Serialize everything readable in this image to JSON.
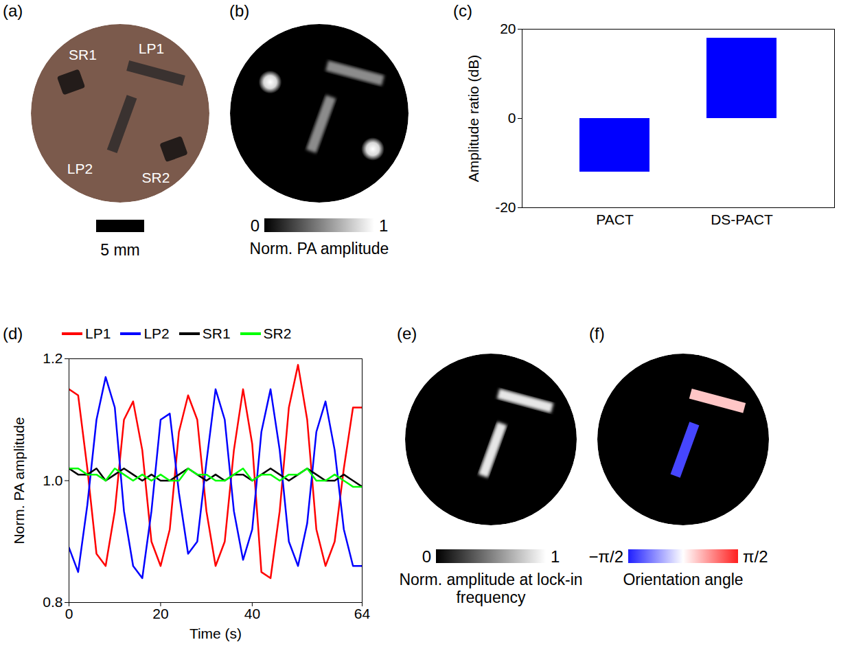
{
  "chart_data": [
    {
      "panel": "(c)",
      "type": "bar",
      "categories": [
        "PACT",
        "DS-PACT"
      ],
      "values": [
        -12,
        18
      ],
      "color": "#0000ff",
      "ylabel": "Amplitude ratio (dB)",
      "ylim": [
        -20,
        20
      ],
      "yticks": [
        -20,
        0,
        20
      ]
    },
    {
      "panel": "(d)",
      "type": "line",
      "xlabel": "Time (s)",
      "ylabel": "Norm. PA amplitude",
      "xlim": [
        0,
        64
      ],
      "xticks": [
        0,
        20,
        40,
        64
      ],
      "ylim": [
        0.8,
        1.2
      ],
      "yticks": [
        0.8,
        {
          "value": 1.0,
          "label": "1.0"
        },
        1.2
      ],
      "legend": "top",
      "x": [
        0,
        2,
        4,
        6,
        8,
        10,
        12,
        14,
        16,
        18,
        20,
        22,
        24,
        26,
        28,
        30,
        32,
        34,
        36,
        38,
        40,
        42,
        44,
        46,
        48,
        50,
        52,
        54,
        56,
        58,
        60,
        62,
        64
      ],
      "series": [
        {
          "name": "LP1",
          "color": "#ff0000",
          "values": [
            1.15,
            1.14,
            1.02,
            0.88,
            0.86,
            0.95,
            1.1,
            1.13,
            1.05,
            0.9,
            0.86,
            0.92,
            1.08,
            1.14,
            1.1,
            0.95,
            0.86,
            0.9,
            1.05,
            1.15,
            1.06,
            0.85,
            0.84,
            0.95,
            1.12,
            1.19,
            1.1,
            0.92,
            0.86,
            0.9,
            1.02,
            1.12,
            1.12
          ]
        },
        {
          "name": "LP2",
          "color": "#0000ff",
          "values": [
            0.89,
            0.85,
            0.96,
            1.1,
            1.17,
            1.12,
            0.95,
            0.86,
            0.84,
            0.95,
            1.1,
            1.11,
            0.98,
            0.88,
            0.9,
            1.03,
            1.15,
            1.1,
            0.95,
            0.87,
            0.92,
            1.08,
            1.15,
            1.05,
            0.9,
            0.86,
            0.93,
            1.08,
            1.13,
            1.05,
            0.92,
            0.86,
            0.86
          ]
        },
        {
          "name": "SR1",
          "color": "#000000",
          "values": [
            1.02,
            1.01,
            1.01,
            1.02,
            1.0,
            1.01,
            1.02,
            1.01,
            1.0,
            1.01,
            1.0,
            1.0,
            1.01,
            1.02,
            1.01,
            1.0,
            1.01,
            1.0,
            1.01,
            1.01,
            1.0,
            1.01,
            1.02,
            1.01,
            1.0,
            1.01,
            1.02,
            1.01,
            1.0,
            1.0,
            1.01,
            1.0,
            0.99
          ]
        },
        {
          "name": "SR2",
          "color": "#00ff00",
          "values": [
            1.02,
            1.02,
            1.01,
            1.01,
            1.0,
            1.02,
            1.01,
            1.0,
            1.01,
            1.0,
            1.01,
            1.0,
            1.0,
            1.02,
            1.01,
            1.01,
            1.0,
            1.0,
            1.01,
            1.02,
            1.0,
            1.01,
            1.01,
            1.0,
            1.01,
            1.01,
            1.02,
            1.0,
            1.0,
            1.01,
            1.0,
            0.99,
            0.99
          ]
        }
      ]
    }
  ],
  "images": [
    {
      "panel": "(a)",
      "type": "photo",
      "labels": [
        "SR1",
        "LP1",
        "LP2",
        "SR2"
      ],
      "scale_bar": "5 mm"
    },
    {
      "panel": "(b)",
      "type": "image",
      "colorbar": {
        "label": "Norm. PA amplitude",
        "range": [
          0,
          1
        ],
        "ticks": [
          0,
          1
        ]
      }
    },
    {
      "panel": "(e)",
      "type": "image",
      "colorbar": {
        "label": "Norm. amplitude at lock-in frequency",
        "range": [
          0,
          1
        ],
        "ticks": [
          0,
          1
        ]
      }
    },
    {
      "panel": "(f)",
      "type": "image",
      "colorbar": {
        "label": "Orientation angle",
        "range": [
          -1.5708,
          1.5708
        ],
        "ticks": [
          {
            "value": -1.5708,
            "label": "−π/2"
          },
          {
            "value": 1.5708,
            "label": "π/2"
          }
        ]
      },
      "orientation": [
        {
          "name": "LP1",
          "angle": 0.4
        },
        {
          "name": "LP2",
          "angle": -1.3
        }
      ]
    }
  ]
}
